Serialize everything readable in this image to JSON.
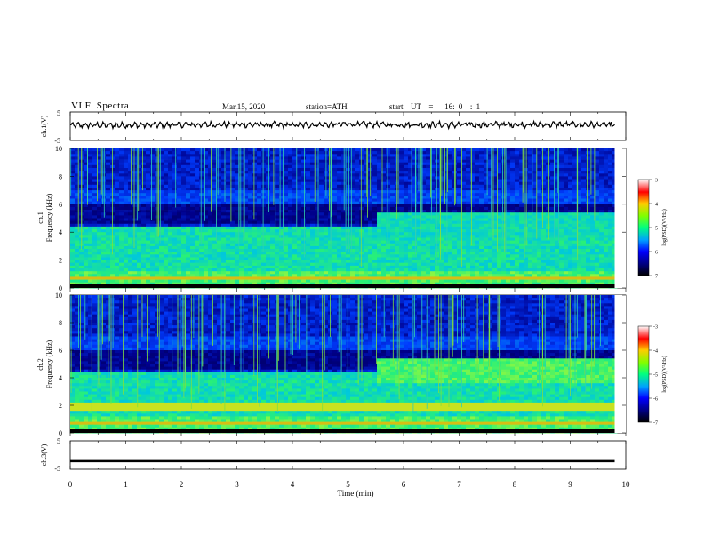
{
  "header": {
    "title": "VLF  Spectra",
    "date": "Mar.15, 2020",
    "station": "station=ATH",
    "start_ut": "start  UT  =   16: 0  : 1"
  },
  "colorbar": {
    "ticks": [
      "-3",
      "-4",
      "-5",
      "-6",
      "-7"
    ],
    "label": "log(PSD)(V²/Hz)"
  },
  "colors": {
    "background_dark": "#000033",
    "low": "#0000a8",
    "mid": "#00c8a0",
    "high": "#e00000"
  },
  "chart_data": [
    {
      "type": "line",
      "name": "ch1-timeseries",
      "ylabel": "ch.1(V)",
      "yticks": [
        "5",
        "-5"
      ],
      "ylim": [
        -5,
        5
      ],
      "xlim": [
        0,
        10
      ],
      "x": [
        0,
        1,
        2,
        3,
        4,
        5,
        6,
        7,
        8,
        9,
        9.8
      ],
      "values": [
        0.3,
        0.4,
        0.5,
        0.6,
        0.4,
        0.7,
        0.5,
        0.5,
        0.6,
        0.6,
        0.4
      ]
    },
    {
      "type": "heatmap",
      "name": "ch1-spectrogram",
      "ylabel": "ch.1\nFrequency (kHz)",
      "yticks": [
        "0",
        "2",
        "4",
        "6",
        "8",
        "10"
      ],
      "ylim": [
        0,
        10
      ],
      "xlim": [
        0,
        10
      ],
      "zlim": [
        -7,
        -3
      ]
    },
    {
      "type": "heatmap",
      "name": "ch2-spectrogram",
      "ylabel": "ch.2\nFrequency (kHz)",
      "yticks": [
        "0",
        "2",
        "4",
        "6",
        "8",
        "10"
      ],
      "ylim": [
        0,
        10
      ],
      "xlim": [
        0,
        10
      ],
      "zlim": [
        -7,
        -3
      ]
    },
    {
      "type": "line",
      "name": "ch3-timeseries",
      "ylabel": "ch.3(V)",
      "yticks": [
        "5",
        "-5"
      ],
      "ylim": [
        -5,
        5
      ],
      "xlim": [
        0,
        10
      ],
      "x": [
        0,
        9.8
      ],
      "values": [
        -2,
        -2
      ]
    }
  ],
  "xaxis": {
    "ticks": [
      "0",
      "1",
      "2",
      "3",
      "4",
      "5",
      "6",
      "7",
      "8",
      "9",
      "10"
    ],
    "label": "Time  (min)"
  }
}
